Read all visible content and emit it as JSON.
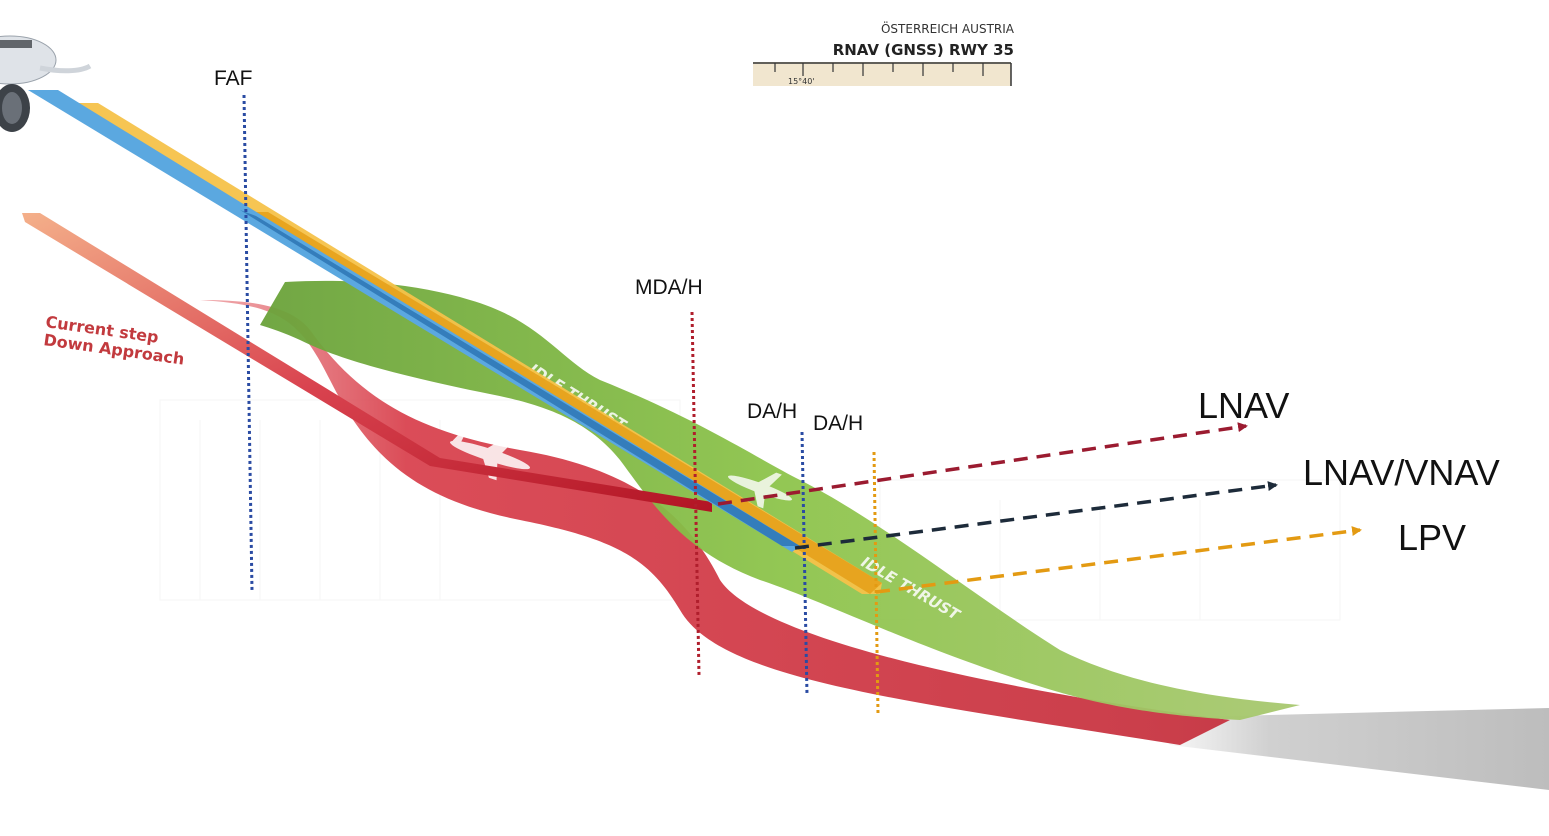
{
  "chart_header": {
    "country": "ÖSTERREICH AUSTRIA",
    "procedure": "RNAV (GNSS) RWY 35",
    "scale_label": "15°40'"
  },
  "markers": {
    "faf": "FAF",
    "mda": "MDA/H",
    "da_blue": "DA/H",
    "da_orange": "DA/H"
  },
  "annotations": {
    "step_down_line1": "Current step",
    "step_down_line2": "Down Approach",
    "idle_thrust_1": "IDLE THRUST",
    "idle_thrust_2": "IDLE THRUST"
  },
  "legend": {
    "lnav": "LNAV",
    "lnav_vnav": "LNAV/VNAV",
    "lpv": "LPV"
  },
  "colors": {
    "lnav": "#9b1b30",
    "lnav_vnav": "#1d2b3a",
    "lpv": "#e39a12",
    "faf_marker": "#2a4ba3",
    "mda_marker": "#b01e2c",
    "da_marker_blue": "#2a4ba3",
    "da_marker_orange": "#e39a12",
    "green_band": "#8dc44b",
    "red_band": "#d9434f",
    "runway": "#c8c8c8",
    "blue_path": "#5ba8e0",
    "yellow_path": "#f5c24a"
  }
}
